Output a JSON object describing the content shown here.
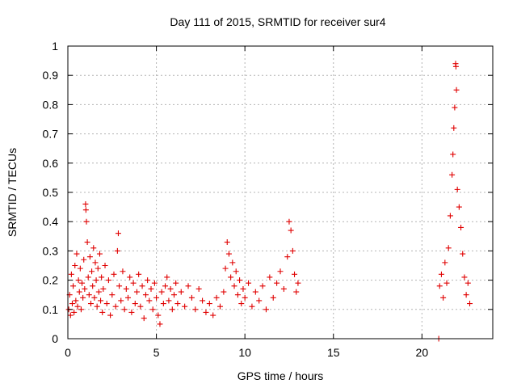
{
  "chart_data": {
    "type": "scatter",
    "title": "Day 111 of 2015, SRMTID for receiver sur4",
    "xlabel": "GPS time / hours",
    "ylabel": "SRMTID / TECUs",
    "xlim": [
      0,
      24
    ],
    "ylim": [
      0,
      1
    ],
    "x_ticks": [
      0,
      5,
      10,
      15,
      20
    ],
    "x_tick_labels": [
      "0",
      "5",
      "10",
      "15",
      "20"
    ],
    "y_ticks": [
      0,
      0.1,
      0.2,
      0.3,
      0.4,
      0.5,
      0.6,
      0.7,
      0.8,
      0.9,
      1
    ],
    "y_tick_labels": [
      "0",
      "0.1",
      "0.2",
      "0.3",
      "0.4",
      "0.5",
      "0.6",
      "0.7",
      "0.8",
      "0.9",
      "1"
    ],
    "grid": true,
    "marker": "+",
    "color": "#e00000",
    "series": [
      {
        "name": "SRMTID",
        "points": [
          [
            0.05,
            0.1
          ],
          [
            0.1,
            0.15
          ],
          [
            0.15,
            0.08
          ],
          [
            0.2,
            0.22
          ],
          [
            0.25,
            0.12
          ],
          [
            0.3,
            0.18
          ],
          [
            0.35,
            0.09
          ],
          [
            0.4,
            0.25
          ],
          [
            0.45,
            0.13
          ],
          [
            0.5,
            0.29
          ],
          [
            0.55,
            0.11
          ],
          [
            0.6,
            0.2
          ],
          [
            0.65,
            0.16
          ],
          [
            0.7,
            0.24
          ],
          [
            0.75,
            0.1
          ],
          [
            0.8,
            0.19
          ],
          [
            0.85,
            0.14
          ],
          [
            0.9,
            0.27
          ],
          [
            0.95,
            0.17
          ],
          [
            1.0,
            0.46
          ],
          [
            1.02,
            0.44
          ],
          [
            1.05,
            0.4
          ],
          [
            1.1,
            0.33
          ],
          [
            1.15,
            0.21
          ],
          [
            1.2,
            0.15
          ],
          [
            1.25,
            0.28
          ],
          [
            1.3,
            0.12
          ],
          [
            1.35,
            0.23
          ],
          [
            1.4,
            0.18
          ],
          [
            1.45,
            0.31
          ],
          [
            1.5,
            0.14
          ],
          [
            1.55,
            0.26
          ],
          [
            1.6,
            0.2
          ],
          [
            1.65,
            0.11
          ],
          [
            1.7,
            0.24
          ],
          [
            1.75,
            0.16
          ],
          [
            1.8,
            0.29
          ],
          [
            1.85,
            0.13
          ],
          [
            1.9,
            0.21
          ],
          [
            1.95,
            0.09
          ],
          [
            2.0,
            0.17
          ],
          [
            2.1,
            0.25
          ],
          [
            2.2,
            0.12
          ],
          [
            2.3,
            0.2
          ],
          [
            2.4,
            0.08
          ],
          [
            2.5,
            0.15
          ],
          [
            2.6,
            0.22
          ],
          [
            2.7,
            0.11
          ],
          [
            2.8,
            0.3
          ],
          [
            2.85,
            0.36
          ],
          [
            2.9,
            0.18
          ],
          [
            3.0,
            0.13
          ],
          [
            3.1,
            0.23
          ],
          [
            3.2,
            0.1
          ],
          [
            3.3,
            0.17
          ],
          [
            3.4,
            0.14
          ],
          [
            3.5,
            0.21
          ],
          [
            3.6,
            0.09
          ],
          [
            3.7,
            0.19
          ],
          [
            3.8,
            0.12
          ],
          [
            3.9,
            0.16
          ],
          [
            4.0,
            0.22
          ],
          [
            4.1,
            0.11
          ],
          [
            4.2,
            0.18
          ],
          [
            4.3,
            0.07
          ],
          [
            4.4,
            0.15
          ],
          [
            4.5,
            0.2
          ],
          [
            4.6,
            0.13
          ],
          [
            4.7,
            0.17
          ],
          [
            4.8,
            0.1
          ],
          [
            4.9,
            0.19
          ],
          [
            5.0,
            0.14
          ],
          [
            5.1,
            0.08
          ],
          [
            5.2,
            0.05
          ],
          [
            5.3,
            0.16
          ],
          [
            5.4,
            0.12
          ],
          [
            5.5,
            0.18
          ],
          [
            5.6,
            0.21
          ],
          [
            5.7,
            0.13
          ],
          [
            5.8,
            0.17
          ],
          [
            5.9,
            0.1
          ],
          [
            6.0,
            0.15
          ],
          [
            6.1,
            0.19
          ],
          [
            6.2,
            0.12
          ],
          [
            6.4,
            0.16
          ],
          [
            6.6,
            0.11
          ],
          [
            6.8,
            0.18
          ],
          [
            7.0,
            0.14
          ],
          [
            7.2,
            0.1
          ],
          [
            7.4,
            0.17
          ],
          [
            7.6,
            0.13
          ],
          [
            7.8,
            0.09
          ],
          [
            8.0,
            0.12
          ],
          [
            8.2,
            0.08
          ],
          [
            8.4,
            0.14
          ],
          [
            8.6,
            0.11
          ],
          [
            8.8,
            0.16
          ],
          [
            8.9,
            0.24
          ],
          [
            9.0,
            0.33
          ],
          [
            9.1,
            0.29
          ],
          [
            9.2,
            0.21
          ],
          [
            9.3,
            0.26
          ],
          [
            9.4,
            0.18
          ],
          [
            9.5,
            0.23
          ],
          [
            9.6,
            0.15
          ],
          [
            9.7,
            0.2
          ],
          [
            9.8,
            0.12
          ],
          [
            9.9,
            0.17
          ],
          [
            10.0,
            0.14
          ],
          [
            10.2,
            0.19
          ],
          [
            10.4,
            0.11
          ],
          [
            10.6,
            0.16
          ],
          [
            10.8,
            0.13
          ],
          [
            11.0,
            0.18
          ],
          [
            11.2,
            0.1
          ],
          [
            11.4,
            0.21
          ],
          [
            11.6,
            0.14
          ],
          [
            11.8,
            0.19
          ],
          [
            12.0,
            0.23
          ],
          [
            12.2,
            0.17
          ],
          [
            12.4,
            0.28
          ],
          [
            12.5,
            0.4
          ],
          [
            12.6,
            0.37
          ],
          [
            12.7,
            0.3
          ],
          [
            12.8,
            0.22
          ],
          [
            12.9,
            0.16
          ],
          [
            13.0,
            0.19
          ],
          [
            20.95,
            0.0
          ],
          [
            21.0,
            0.18
          ],
          [
            21.1,
            0.22
          ],
          [
            21.2,
            0.14
          ],
          [
            21.3,
            0.26
          ],
          [
            21.4,
            0.19
          ],
          [
            21.5,
            0.31
          ],
          [
            21.6,
            0.42
          ],
          [
            21.7,
            0.56
          ],
          [
            21.75,
            0.63
          ],
          [
            21.8,
            0.72
          ],
          [
            21.85,
            0.79
          ],
          [
            21.9,
            0.94
          ],
          [
            21.92,
            0.93
          ],
          [
            21.95,
            0.85
          ],
          [
            22.0,
            0.51
          ],
          [
            22.1,
            0.45
          ],
          [
            22.2,
            0.38
          ],
          [
            22.3,
            0.29
          ],
          [
            22.4,
            0.21
          ],
          [
            22.5,
            0.15
          ],
          [
            22.6,
            0.19
          ],
          [
            22.7,
            0.12
          ]
        ]
      }
    ]
  }
}
